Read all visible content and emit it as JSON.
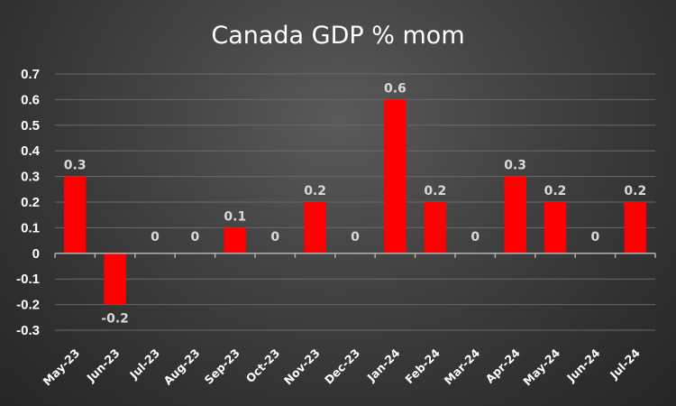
{
  "chart_data": {
    "type": "bar",
    "title": "Canada GDP % mom",
    "xlabel": "",
    "ylabel": "",
    "categories": [
      "May-23",
      "Jun-23",
      "Jul-23",
      "Aug-23",
      "Sep-23",
      "Oct-23",
      "Nov-23",
      "Dec-23",
      "Jan-24",
      "Feb-24",
      "Mar-24",
      "Apr-24",
      "May-24",
      "Jun-24",
      "Jul-24"
    ],
    "values": [
      0.3,
      -0.2,
      0,
      0,
      0.1,
      0,
      0.2,
      0,
      0.6,
      0.2,
      0,
      0.3,
      0.2,
      0,
      0.2
    ],
    "data_labels": [
      "0.3",
      "-0.2",
      "0",
      "0",
      "0.1",
      "0",
      "0.2",
      "0",
      "0.6",
      "0.2",
      "0",
      "0.3",
      "0.2",
      "0",
      "0.2"
    ],
    "ylim": [
      -0.3,
      0.7
    ],
    "yticks": [
      0.7,
      0.6,
      0.5,
      0.4,
      0.3,
      0.2,
      0.1,
      0,
      -0.1,
      -0.2,
      -0.3
    ],
    "ytick_labels": [
      "0.7",
      "0.6",
      "0.5",
      "0.4",
      "0.3",
      "0.2",
      "0.1",
      "0",
      "-0.1",
      "-0.2",
      "-0.3"
    ],
    "grid": true,
    "legend": "none",
    "bar_color": "#ff0000",
    "background": "#3c3c3c"
  }
}
